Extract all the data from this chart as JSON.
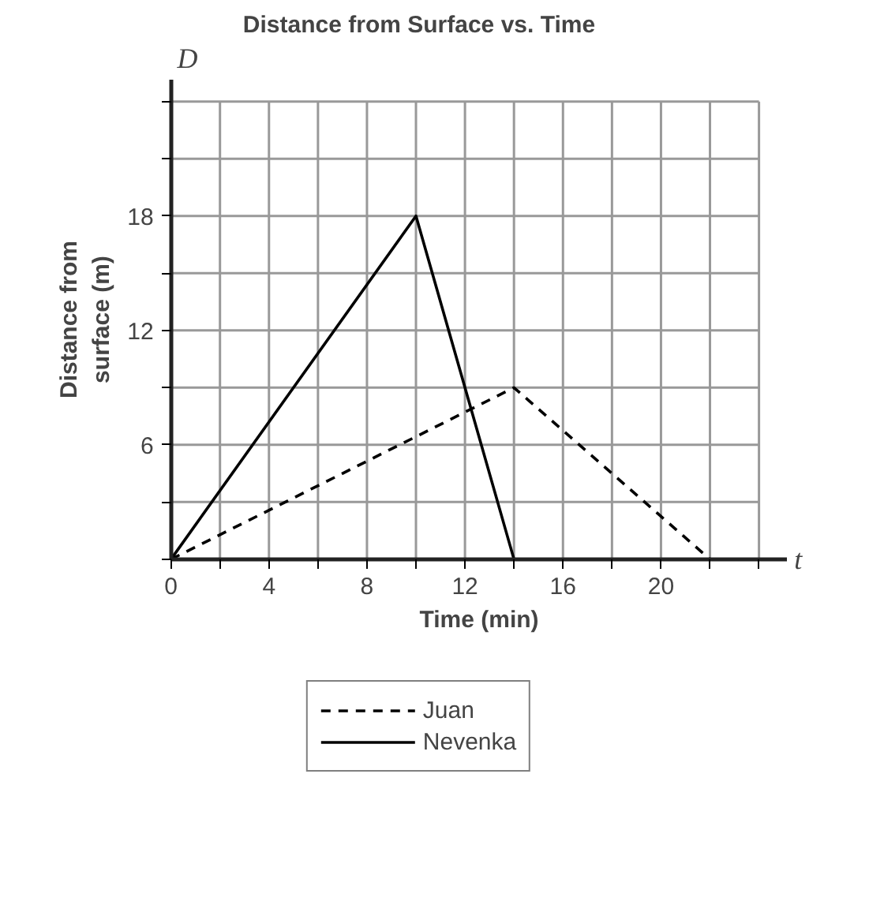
{
  "chart_data": {
    "type": "line",
    "title": "Distance from Surface vs. Time",
    "xlabel": "Time (min)",
    "ylabel": "Distance from surface (m)",
    "annotations": [
      "D",
      "t"
    ],
    "series": [
      {
        "name": "Juan",
        "color": "#000000",
        "line_style": "dashed",
        "x": [
          0,
          14,
          22
        ],
        "values": [
          0,
          9,
          0
        ]
      },
      {
        "name": "Nevenka",
        "color": "#000000",
        "line_style": "solid",
        "x": [
          0,
          10,
          14
        ],
        "values": [
          0,
          18,
          0
        ]
      }
    ],
    "xlim": [
      0,
      24
    ],
    "ylim": [
      0,
      24
    ],
    "xticks": [
      0,
      {
        "value": 2,
        "label": null
      },
      4,
      {
        "value": 6,
        "label": null
      },
      8,
      {
        "value": 10,
        "label": null
      },
      12,
      {
        "value": 14,
        "label": null
      },
      16,
      {
        "value": 18,
        "label": null
      },
      20,
      {
        "value": 22,
        "label": null
      },
      {
        "value": 24,
        "label": null
      }
    ],
    "yticks": [
      {
        "value": 0,
        "label": null
      },
      {
        "value": 3,
        "label": null
      },
      6,
      {
        "value": 9,
        "label": null
      },
      12,
      {
        "value": 15,
        "label": null
      },
      18,
      {
        "value": 21,
        "label": null
      },
      {
        "value": 24,
        "label": null
      }
    ],
    "grid": true,
    "legend": "bottom",
    "marker": "none"
  }
}
